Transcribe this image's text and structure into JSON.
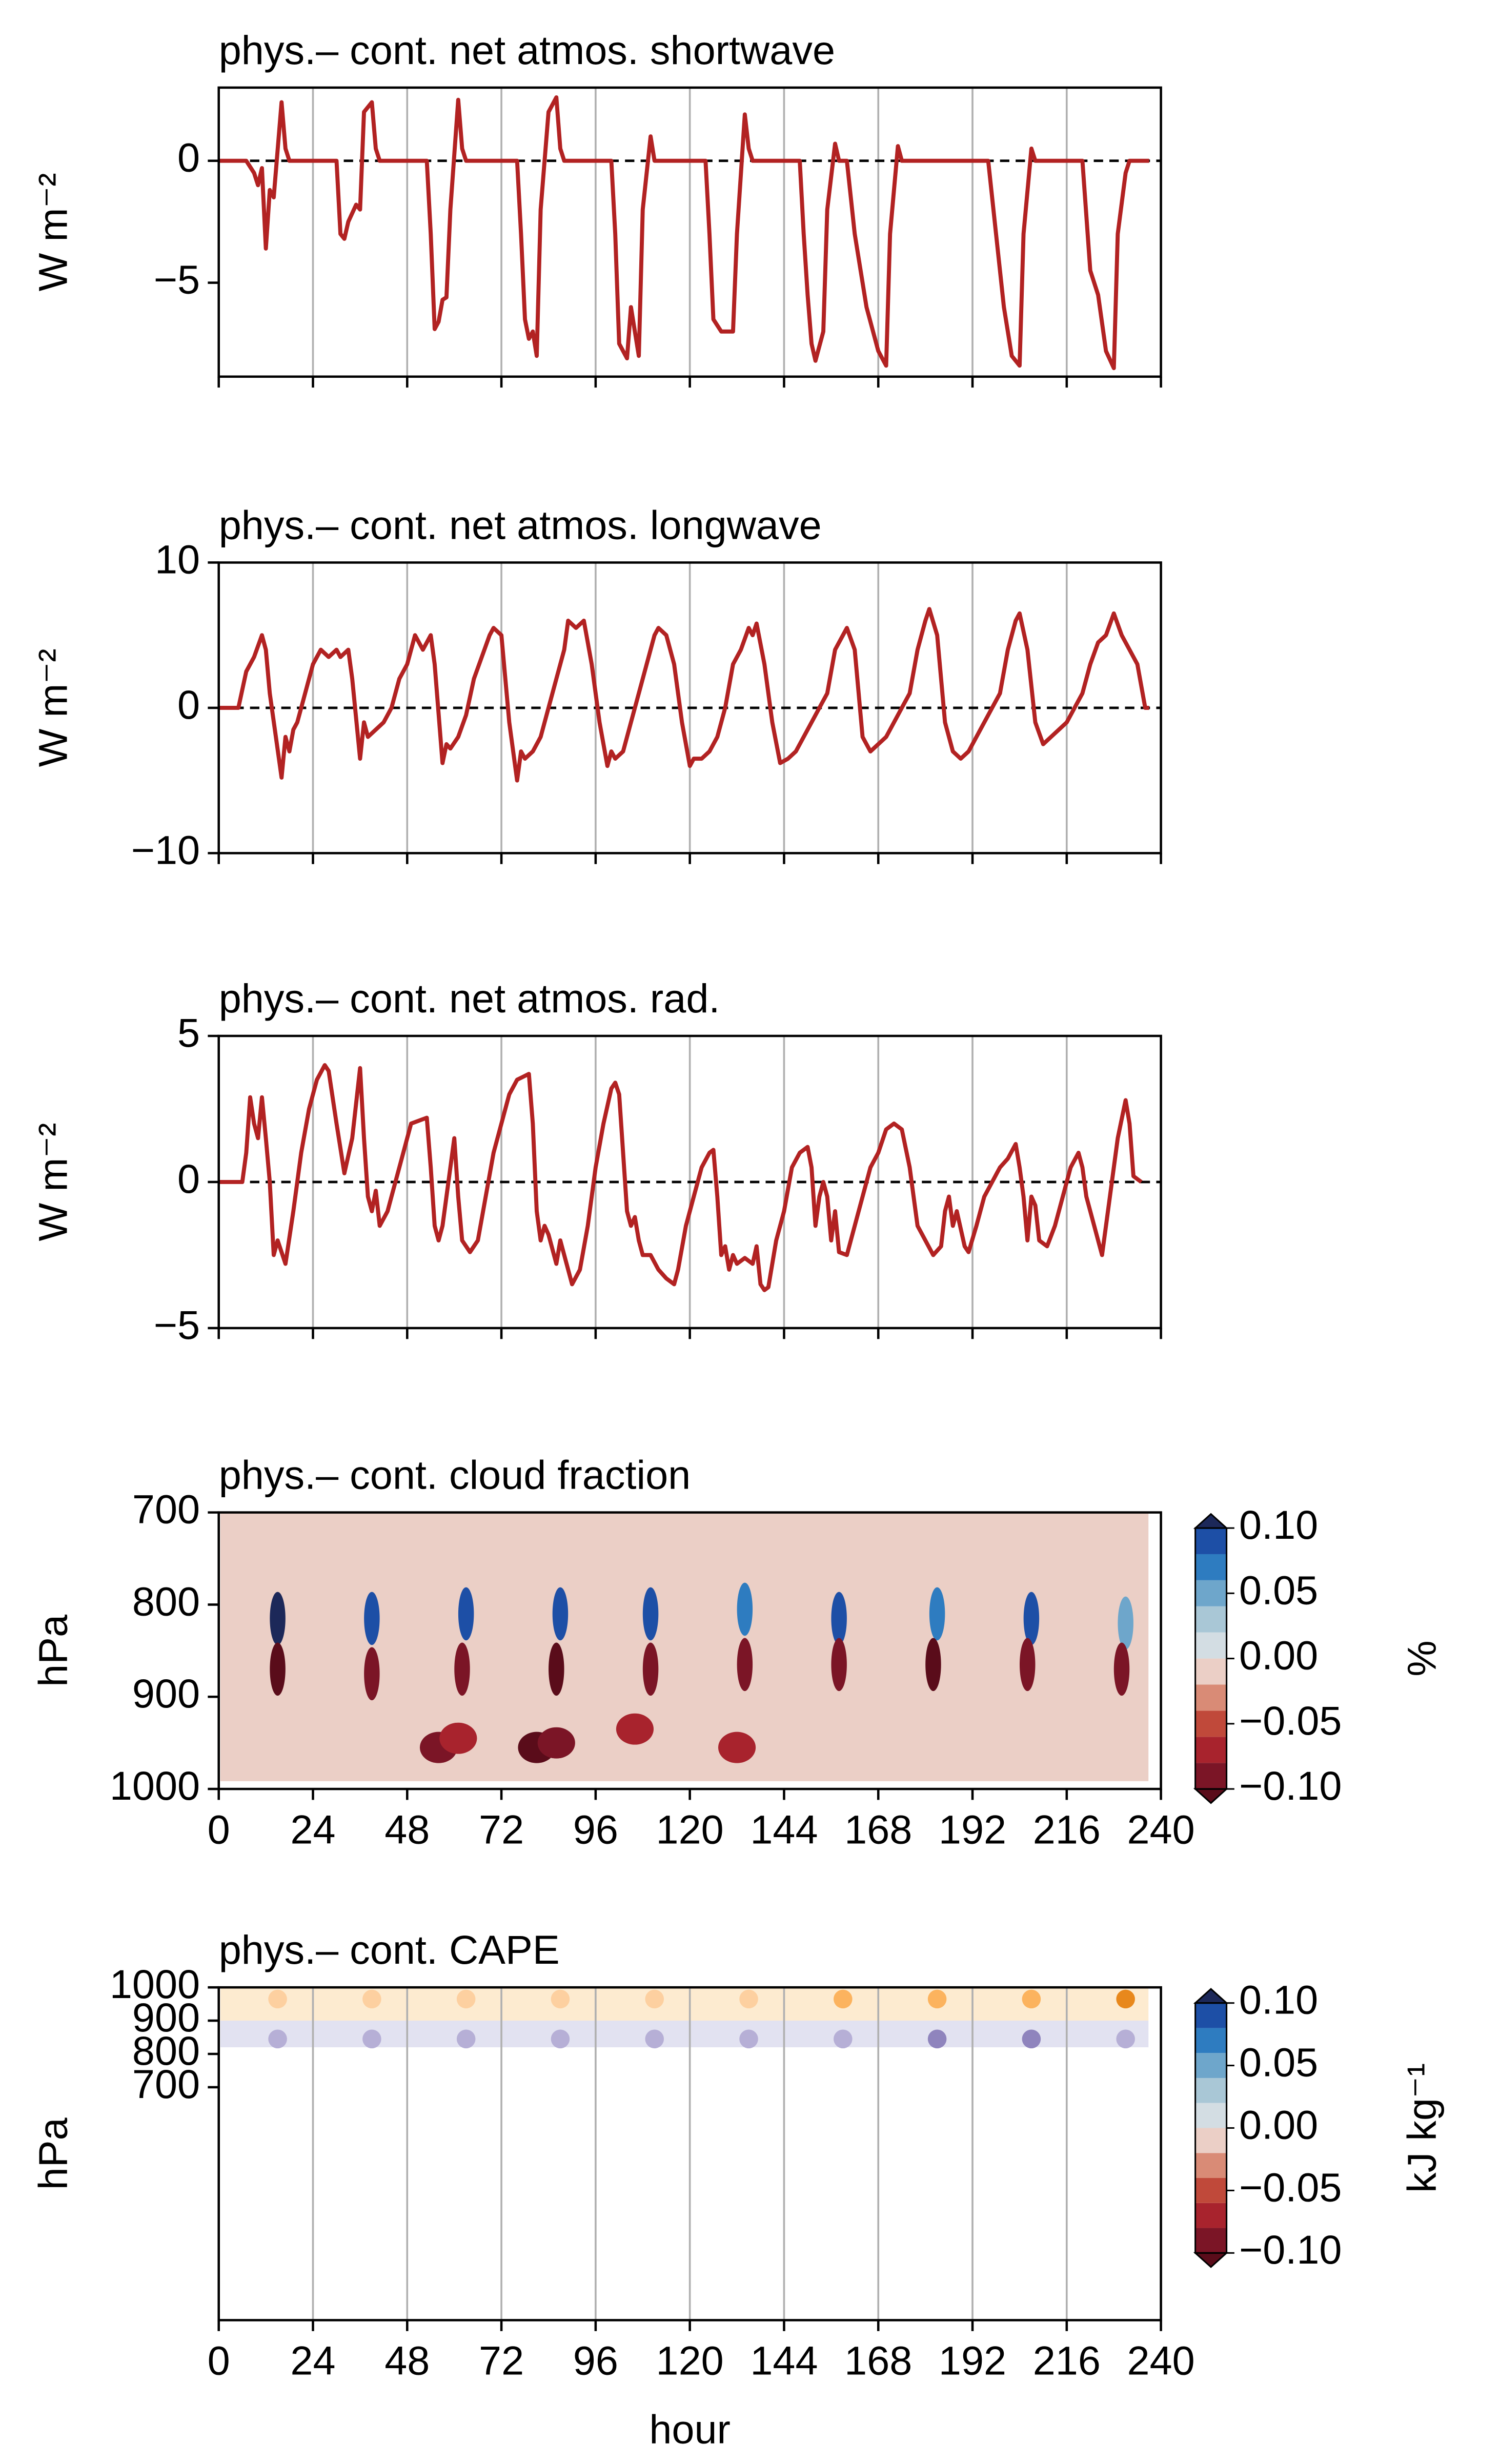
{
  "chart_data": [
    {
      "type": "line",
      "title": "phys.– cont. net atmos. shortwave",
      "ylabel": "W m⁻²",
      "x": [
        0,
        7,
        9,
        10,
        11,
        12,
        13,
        14,
        16,
        17,
        18,
        30,
        31,
        32,
        33,
        35,
        36,
        37,
        39,
        40,
        41,
        53,
        54,
        55,
        56,
        57,
        58,
        59,
        61,
        62,
        63,
        76,
        77,
        78,
        79,
        80,
        81,
        82,
        84,
        86,
        87,
        88,
        100,
        101,
        102,
        104,
        105,
        107,
        108,
        110,
        111,
        124,
        125,
        126,
        128,
        131,
        132,
        134,
        135,
        136,
        148,
        149,
        150,
        151,
        152,
        154,
        155,
        157,
        158,
        160,
        162,
        165,
        168,
        170,
        171,
        173,
        174,
        196,
        198,
        200,
        202,
        204,
        205,
        207,
        208,
        220,
        222,
        224,
        226,
        228,
        229,
        231,
        232,
        237
      ],
      "series": [
        {
          "color": "#b22222",
          "values": [
            0,
            0,
            -0.5,
            -1.0,
            -0.3,
            -3.6,
            -1.2,
            -1.5,
            2.4,
            0.5,
            0,
            0,
            -3.0,
            -3.2,
            -2.5,
            -1.8,
            -2.0,
            2.0,
            2.4,
            0.5,
            0,
            0,
            -3,
            -6.9,
            -6.6,
            -5.7,
            -5.6,
            -2,
            2.5,
            0.5,
            0,
            0,
            -3,
            -6.5,
            -7.3,
            -7.0,
            -8.0,
            -2,
            2,
            2.6,
            0.5,
            0,
            0,
            -3,
            -7.5,
            -8.1,
            -6.0,
            -8.0,
            -2,
            1.0,
            0,
            0,
            -3,
            -6.5,
            -7.0,
            -7.0,
            -3,
            1.9,
            0.5,
            0,
            0,
            -3,
            -5.5,
            -7.5,
            -8.2,
            -7.0,
            -2,
            0.7,
            0,
            0,
            -3,
            -6,
            -7.8,
            -8.4,
            -3,
            0.6,
            0,
            0,
            -3,
            -6,
            -8,
            -8.4,
            -3,
            0.5,
            0,
            0,
            -4.5,
            -5.5,
            -7.8,
            -8.5,
            -3,
            -0.5,
            0,
            0
          ]
        }
      ],
      "xlim": [
        0,
        240
      ],
      "xticks": [
        0,
        24,
        48,
        72,
        96,
        120,
        144,
        168,
        192,
        216,
        240
      ],
      "xtick_labels": false,
      "ylim": [
        -8.85,
        3.0
      ],
      "yticks": [
        {
          "value": -5,
          "label": "−5"
        },
        0
      ],
      "grid_x": true,
      "reference_line": 0
    },
    {
      "type": "line",
      "title": "phys.– cont. net atmos. longwave",
      "ylabel": "W m⁻²",
      "x": [
        0,
        5,
        7,
        9,
        11,
        12,
        13,
        16,
        17,
        18,
        19,
        20,
        22,
        24,
        26,
        28,
        30,
        31,
        33,
        34,
        36,
        37,
        38,
        40,
        42,
        44,
        46,
        48,
        50,
        52,
        54,
        55,
        57,
        58,
        59,
        61,
        63,
        65,
        67,
        69,
        70,
        72,
        74,
        76,
        77,
        78,
        80,
        82,
        84,
        86,
        88,
        89,
        91,
        93,
        95,
        97,
        99,
        100,
        101,
        103,
        105,
        107,
        109,
        111,
        112,
        114,
        116,
        118,
        120,
        121,
        123,
        125,
        127,
        129,
        131,
        133,
        135,
        136,
        137,
        139,
        141,
        143,
        145,
        147,
        149,
        151,
        153,
        155,
        157,
        159,
        160,
        162,
        164,
        166,
        168,
        170,
        172,
        174,
        176,
        178,
        180,
        181,
        183,
        185,
        187,
        189,
        191,
        193,
        195,
        197,
        199,
        201,
        203,
        204,
        206,
        208,
        210,
        212,
        214,
        216,
        218,
        220,
        222,
        224,
        226,
        228,
        230,
        232,
        234,
        236,
        237
      ],
      "series": [
        {
          "color": "#b22222",
          "values": [
            0,
            0,
            2.5,
            3.5,
            5,
            4,
            1,
            -4.8,
            -2,
            -3,
            -1.5,
            -1,
            1,
            3,
            4,
            3.5,
            4,
            3.5,
            4,
            2,
            -3.5,
            -1,
            -2,
            -1.5,
            -1,
            0,
            2,
            3,
            5,
            4,
            5,
            3,
            -3.8,
            -2.5,
            -2.8,
            -2,
            -0.5,
            2,
            3.5,
            5,
            5.5,
            5,
            -1,
            -5,
            -3,
            -3.5,
            -3,
            -2,
            0,
            2,
            4,
            6,
            5.5,
            6,
            3,
            -1,
            -4,
            -3,
            -3.5,
            -3,
            -1,
            1,
            3,
            5,
            5.5,
            5,
            3,
            -1,
            -4,
            -3.5,
            -3.5,
            -3,
            -2,
            0,
            3,
            4,
            5.5,
            5,
            5.8,
            3,
            -1,
            -3.8,
            -3.5,
            -3,
            -2,
            -1,
            0,
            1,
            4,
            5,
            5.5,
            4,
            -2,
            -3,
            -2.5,
            -2,
            -1,
            0,
            1,
            4,
            6,
            6.8,
            5,
            -1,
            -3,
            -3.5,
            -3,
            -2,
            -1,
            0,
            1,
            4,
            6,
            6.5,
            4,
            -1,
            -2.5,
            -2,
            -1.5,
            -1,
            0,
            1,
            3,
            4.5,
            5,
            6.5,
            5,
            4,
            3,
            0,
            0
          ]
        }
      ],
      "xlim": [
        0,
        240
      ],
      "xticks": [
        0,
        24,
        48,
        72,
        96,
        120,
        144,
        168,
        192,
        216,
        240
      ],
      "xtick_labels": false,
      "ylim": [
        -10,
        10
      ],
      "yticks": [
        {
          "value": -10,
          "label": "−10"
        },
        0,
        10
      ],
      "grid_x": true,
      "reference_line": 0
    },
    {
      "type": "line",
      "title": "phys.– cont. net atmos. rad.",
      "ylabel": "W m⁻²",
      "x": [
        0,
        6,
        7,
        8,
        9,
        10,
        11,
        12,
        13,
        14,
        15,
        17,
        19,
        21,
        23,
        25,
        27,
        28,
        30,
        32,
        34,
        36,
        37,
        38,
        39,
        40,
        41,
        43,
        45,
        47,
        49,
        53,
        54,
        55,
        56,
        57,
        58,
        60,
        61,
        62,
        64,
        66,
        68,
        70,
        72,
        74,
        76,
        79,
        80,
        81,
        82,
        83,
        84,
        86,
        87,
        88,
        90,
        92,
        94,
        96,
        98,
        100,
        101,
        102,
        104,
        105,
        106,
        107,
        108,
        110,
        112,
        114,
        116,
        117,
        119,
        121,
        123,
        125,
        126,
        127,
        128,
        129,
        130,
        131,
        132,
        134,
        136,
        137,
        138,
        139,
        140,
        142,
        144,
        146,
        148,
        150,
        151,
        152,
        153,
        154,
        155,
        156,
        157,
        158,
        160,
        162,
        164,
        166,
        168,
        170,
        172,
        174,
        176,
        177,
        178,
        180,
        182,
        184,
        185,
        186,
        187,
        188,
        190,
        191,
        193,
        195,
        197,
        199,
        201,
        203,
        204,
        205,
        206,
        207,
        208,
        209,
        211,
        213,
        215,
        217,
        219,
        220,
        221,
        223,
        225,
        227,
        229,
        231,
        232,
        233,
        234,
        235
      ],
      "series": [
        {
          "color": "#b22222",
          "values": [
            0,
            0,
            1,
            2.9,
            2,
            1.5,
            2.9,
            1.5,
            0,
            -2.5,
            -2,
            -2.8,
            -1,
            1,
            2.5,
            3.5,
            4,
            3.8,
            2,
            0.3,
            1.5,
            3.9,
            1.5,
            -0.5,
            -1,
            -0.3,
            -1.5,
            -1,
            0,
            1,
            2,
            2.2,
            0.5,
            -1.5,
            -2,
            -1.5,
            -0.5,
            1.5,
            -0.5,
            -2,
            -2.4,
            -2,
            -0.5,
            1,
            2,
            3,
            3.5,
            3.7,
            2,
            -1,
            -2,
            -1.5,
            -1.8,
            -2.8,
            -2,
            -2.5,
            -3.5,
            -3,
            -1.5,
            0.5,
            2,
            3.2,
            3.4,
            3,
            -1,
            -1.5,
            -1.2,
            -2,
            -2.5,
            -2.5,
            -3,
            -3.3,
            -3.5,
            -3,
            -1.5,
            -0.5,
            0.5,
            1,
            1.1,
            -0.5,
            -2.5,
            -2.2,
            -3.0,
            -2.5,
            -2.8,
            -2.6,
            -2.8,
            -2.2,
            -3.5,
            -3.7,
            -3.6,
            -2,
            -1,
            0.5,
            1,
            1.2,
            0.5,
            -1.5,
            -0.5,
            0,
            -0.5,
            -2,
            -1,
            -2.4,
            -2.5,
            -1.5,
            -0.5,
            0.5,
            1,
            1.8,
            2,
            1.8,
            0.5,
            -0.5,
            -1.5,
            -2,
            -2.5,
            -2.2,
            -1,
            -0.5,
            -1.5,
            -1,
            -2.2,
            -2.4,
            -1.5,
            -0.5,
            0,
            0.5,
            0.8,
            1.3,
            0.5,
            -0.5,
            -2,
            -0.5,
            -0.8,
            -2,
            -2.2,
            -1.5,
            -0.5,
            0.5,
            1,
            0.5,
            -0.5,
            -1.5,
            -2.5,
            -0.5,
            1.5,
            2.8,
            2,
            0.2,
            0.1,
            0
          ]
        }
      ],
      "xlim": [
        0,
        240
      ],
      "xticks": [
        0,
        24,
        48,
        72,
        96,
        120,
        144,
        168,
        192,
        216,
        240
      ],
      "xtick_labels": false,
      "ylim": [
        -5,
        5
      ],
      "yticks": [
        {
          "value": -5,
          "label": "−5"
        },
        0,
        5
      ],
      "grid_x": true,
      "reference_line": 0
    },
    {
      "type": "contour",
      "title": "phys.– cont. cloud fraction",
      "ylabel": "hPa",
      "xlim": [
        0,
        240
      ],
      "xticks": [
        0,
        24,
        48,
        72,
        96,
        120,
        144,
        168,
        192,
        216,
        240
      ],
      "xtick_labels": true,
      "ylim": [
        1000,
        700
      ],
      "yticks": [
        700,
        800,
        900,
        1000
      ],
      "grid_x": false,
      "levels": [
        -0.1,
        -0.08,
        -0.06,
        -0.04,
        -0.02,
        0,
        0.02,
        0.04,
        0.06,
        0.08,
        0.1
      ],
      "colors": [
        "#7b1526",
        "#a8232d",
        "#c0493a",
        "#d98b76",
        "#ebcfc6",
        "#d3dde3",
        "#a9c7d6",
        "#6ea6cb",
        "#2e7cc0",
        "#1d4fa6"
      ],
      "under_color": "#5a0c1a",
      "over_color": "#1c2859",
      "colorbar_ticks": [
        {
          "value": 0.1,
          "label": "0.10"
        },
        {
          "value": 0.05,
          "label": "0.05"
        },
        {
          "value": 0,
          "label": "0.00"
        },
        {
          "value": -0.05,
          "label": "−0.05"
        },
        {
          "value": -0.1,
          "label": "−0.10"
        }
      ],
      "colorbar_label": "%",
      "background": -0.01,
      "features": {
        "x": [
          15,
          15,
          39,
          39,
          63,
          62,
          87,
          86,
          110,
          110,
          134,
          134,
          158,
          158,
          183,
          182,
          207,
          206,
          231,
          230,
          56,
          61,
          81,
          86,
          106,
          132
        ],
        "y": [
          815,
          870,
          815,
          875,
          810,
          870,
          810,
          870,
          810,
          870,
          805,
          865,
          815,
          865,
          810,
          865,
          815,
          865,
          820,
          870,
          955,
          945,
          955,
          950,
          935,
          955
        ],
        "values": [
          0.11,
          -0.11,
          0.09,
          -0.09,
          0.09,
          -0.09,
          0.09,
          -0.11,
          0.09,
          -0.09,
          0.07,
          -0.09,
          0.09,
          -0.09,
          0.07,
          -0.11,
          0.09,
          -0.09,
          0.05,
          -0.09,
          -0.09,
          -0.07,
          -0.11,
          -0.09,
          -0.07,
          -0.07
        ]
      }
    },
    {
      "type": "contour",
      "title": "phys.– cont. CAPE",
      "ylabel": "hPa",
      "xlabel": "hour",
      "xlim": [
        0,
        240
      ],
      "xticks": [
        0,
        24,
        48,
        72,
        96,
        120,
        144,
        168,
        192,
        216,
        240
      ],
      "xtick_labels": true,
      "ylim": [
        0,
        1000
      ],
      "yticks": [
        700,
        800,
        900,
        1000
      ],
      "grid_x": true,
      "levels": [
        -0.1,
        -0.08,
        -0.06,
        -0.04,
        -0.02,
        0,
        0.02,
        0.04,
        0.06,
        0.08,
        0.1
      ],
      "colors": [
        "#7b1526",
        "#a8232d",
        "#c0493a",
        "#d98b76",
        "#ebcfc6",
        "#d3dde3",
        "#a9c7d6",
        "#6ea6cb",
        "#2e7cc0",
        "#1d4fa6"
      ],
      "under_color": "#5a0c1a",
      "over_color": "#1c2859",
      "fill_colors": [
        "#4b2a82",
        "#6a55a0",
        "#8f84bd",
        "#b6afd6",
        "#e2e2f1",
        "#fdebd0",
        "#fdd0a0",
        "#fcb35e",
        "#e8881c",
        "#b85e08"
      ],
      "colorbar_ticks": [
        {
          "value": 0.1,
          "label": "0.10"
        },
        {
          "value": 0.05,
          "label": "0.05"
        },
        {
          "value": 0,
          "label": "0.00"
        },
        {
          "value": -0.05,
          "label": "−0.05"
        },
        {
          "value": -0.1,
          "label": "−0.10"
        }
      ],
      "colorbar_label": "kJ kg⁻¹",
      "bands": {
        "top": [
          1000,
          900
        ],
        "bottom": [
          900,
          820
        ],
        "values": [
          0.01,
          -0.01
        ]
      },
      "features": {
        "x": [
          15,
          39,
          63,
          87,
          111,
          135,
          159,
          183,
          207,
          231,
          15,
          39,
          63,
          87,
          111,
          135,
          159,
          183,
          207,
          231
        ],
        "y": [
          965,
          965,
          965,
          965,
          965,
          965,
          965,
          965,
          965,
          965,
          845,
          845,
          845,
          845,
          845,
          845,
          845,
          845,
          845,
          845
        ],
        "values": [
          0.03,
          0.03,
          0.03,
          0.03,
          0.03,
          0.03,
          0.05,
          0.05,
          0.05,
          0.07,
          -0.03,
          -0.03,
          -0.03,
          -0.03,
          -0.03,
          -0.03,
          -0.03,
          -0.05,
          -0.05,
          -0.03
        ]
      }
    }
  ]
}
